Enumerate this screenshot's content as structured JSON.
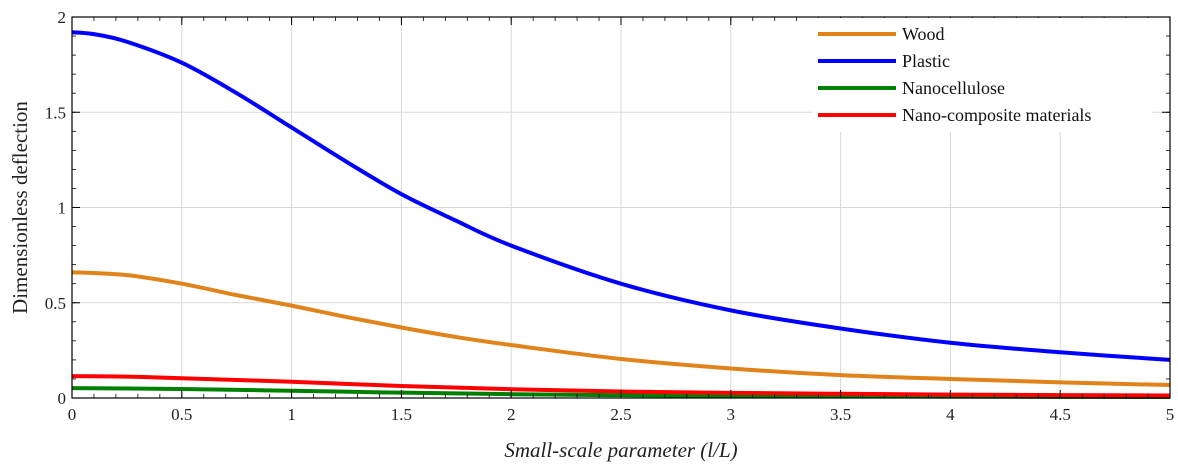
{
  "chart_data": {
    "type": "line",
    "title": "",
    "xlabel": "Small-scale parameter (l/L)",
    "ylabel": "Dimensionless deflection",
    "xlim": [
      0,
      5
    ],
    "ylim": [
      0,
      2
    ],
    "xticks": [
      "0",
      "0.5",
      "1",
      "1.5",
      "2",
      "2.5",
      "3",
      "3.5",
      "4",
      "4.5",
      "5"
    ],
    "yticks": [
      "0",
      "0.5",
      "1",
      "1.5",
      "2"
    ],
    "grid": true,
    "legend_position": "top-right",
    "series": [
      {
        "name": "Wood",
        "color": "#E0831A",
        "x": [
          0,
          0.25,
          0.5,
          0.75,
          1,
          1.25,
          1.5,
          1.75,
          2,
          2.5,
          3,
          3.5,
          4,
          4.5,
          5
        ],
        "y": [
          0.66,
          0.645,
          0.6,
          0.54,
          0.485,
          0.425,
          0.37,
          0.32,
          0.278,
          0.205,
          0.155,
          0.12,
          0.1,
          0.082,
          0.068
        ]
      },
      {
        "name": "Plastic",
        "color": "#0000FF",
        "x": [
          0,
          0.1,
          0.25,
          0.5,
          0.75,
          1,
          1.25,
          1.5,
          1.75,
          2,
          2.5,
          3,
          3.5,
          4,
          4.5,
          5
        ],
        "y": [
          1.92,
          1.91,
          1.87,
          1.76,
          1.6,
          1.42,
          1.24,
          1.07,
          0.93,
          0.8,
          0.6,
          0.46,
          0.365,
          0.29,
          0.24,
          0.2
        ]
      },
      {
        "name": "Nanocellulose",
        "color": "#008000",
        "x": [
          0,
          0.5,
          1,
          1.5,
          2,
          2.5,
          3,
          3.5,
          4,
          4.5,
          5
        ],
        "y": [
          0.052,
          0.047,
          0.038,
          0.028,
          0.02,
          0.015,
          0.011,
          0.009,
          0.007,
          0.006,
          0.005
        ]
      },
      {
        "name": "Nano-composite materials",
        "color": "#FF0000",
        "x": [
          0,
          0.25,
          0.5,
          1,
          1.5,
          2,
          2.5,
          3,
          3.5,
          4,
          4.5,
          5
        ],
        "y": [
          0.115,
          0.112,
          0.104,
          0.085,
          0.063,
          0.046,
          0.034,
          0.027,
          0.022,
          0.018,
          0.015,
          0.013
        ]
      }
    ]
  }
}
